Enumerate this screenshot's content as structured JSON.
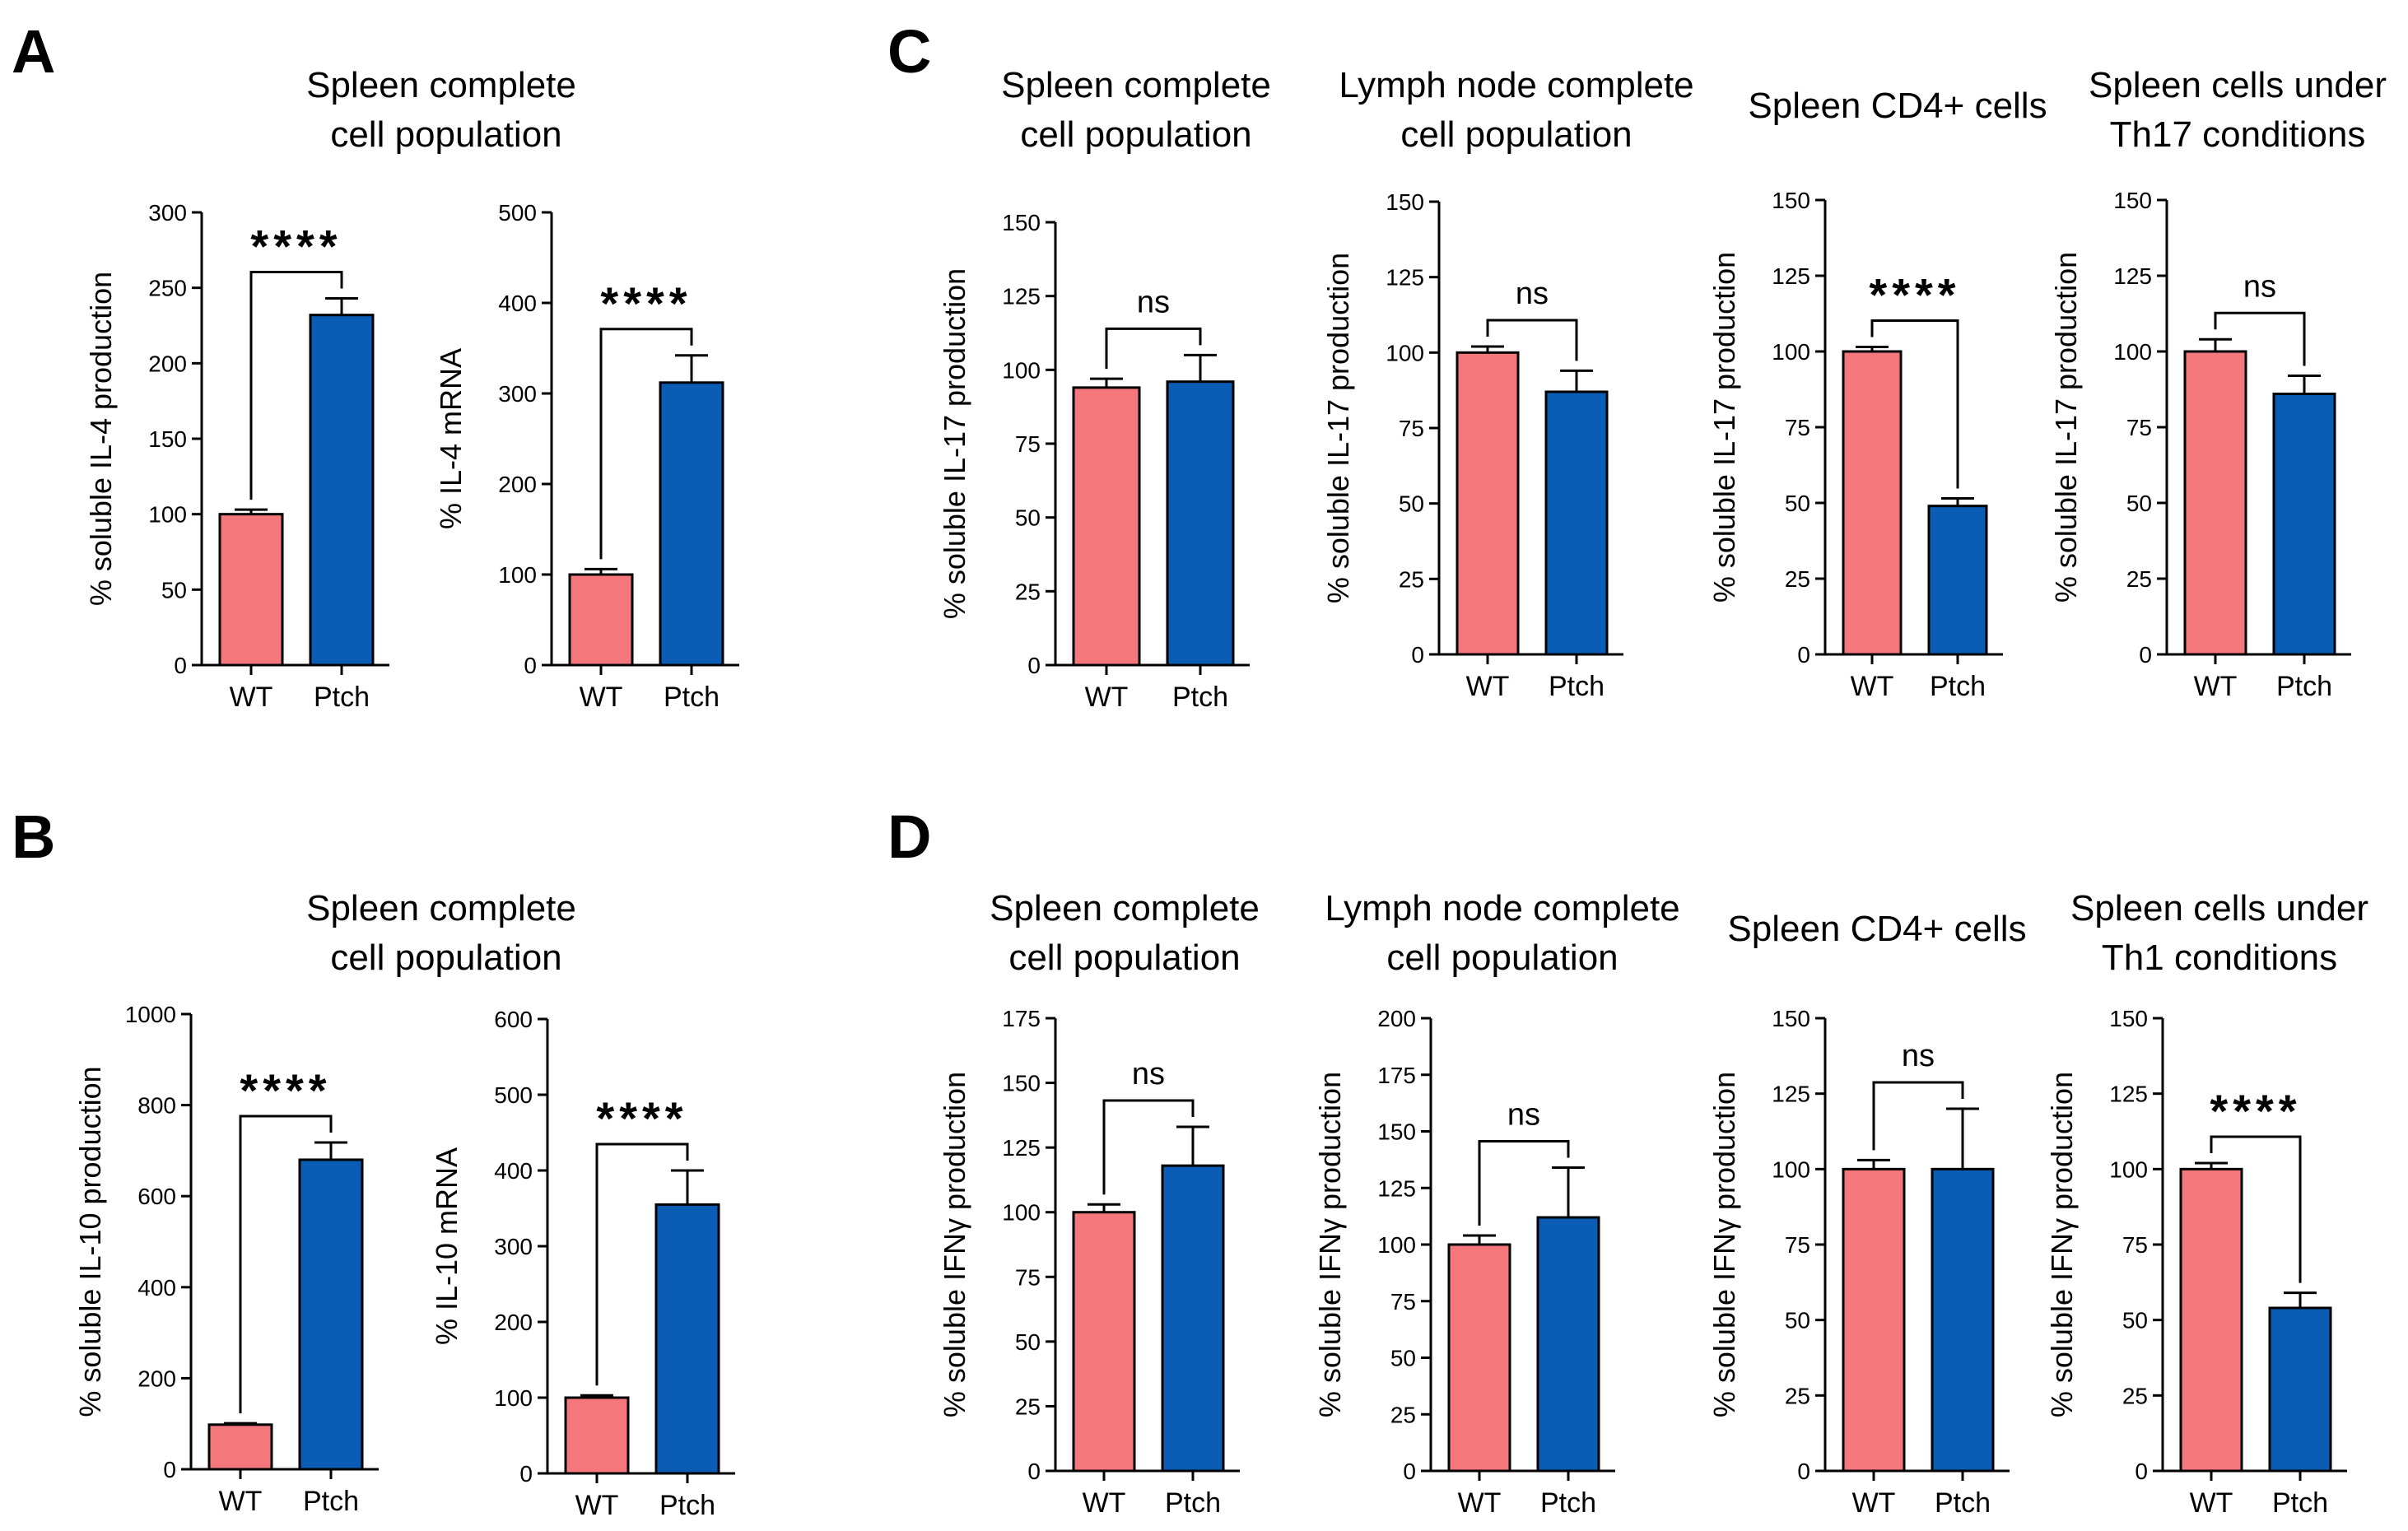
{
  "colors": {
    "wt": "#F4777B",
    "ptch": "#0A5CB5",
    "axis": "#000000"
  },
  "panels": [
    {
      "letter": "A",
      "title": [
        "Spleen complete",
        "cell population"
      ]
    },
    {
      "letter": "B",
      "title": [
        "Spleen complete",
        "cell population"
      ]
    },
    {
      "letter": "C"
    },
    {
      "letter": "D"
    }
  ],
  "chart_data": [
    {
      "id": "A1",
      "type": "bar",
      "panel": "A",
      "title": [],
      "ylabel": "% soluble IL-4 production",
      "ylim": [
        0,
        300
      ],
      "ticks": [
        0,
        50,
        100,
        150,
        200,
        250,
        300
      ],
      "categories": [
        "WT",
        "Ptch"
      ],
      "values": [
        100,
        232
      ],
      "errors": [
        3,
        11
      ],
      "significance": "****"
    },
    {
      "id": "A2",
      "type": "bar",
      "panel": "A",
      "title": [],
      "ylabel": "%  IL-4 mRNA",
      "ylim": [
        0,
        500
      ],
      "ticks": [
        0,
        100,
        200,
        300,
        400,
        500
      ],
      "categories": [
        "WT",
        "Ptch"
      ],
      "values": [
        100,
        312
      ],
      "errors": [
        6,
        30
      ],
      "significance": "****"
    },
    {
      "id": "B1",
      "type": "bar",
      "panel": "B",
      "title": [],
      "ylabel": "% soluble IL-10 production",
      "ylim": [
        0,
        1000
      ],
      "ticks": [
        0,
        200,
        400,
        600,
        800,
        1000
      ],
      "categories": [
        "WT",
        "Ptch"
      ],
      "values": [
        98,
        680
      ],
      "errors": [
        3,
        38
      ],
      "significance": "****"
    },
    {
      "id": "B2",
      "type": "bar",
      "panel": "B",
      "title": [],
      "ylabel": "%  IL-10 mRNA",
      "ylim": [
        0,
        600
      ],
      "ticks": [
        0,
        100,
        200,
        300,
        400,
        500,
        600
      ],
      "categories": [
        "WT",
        "Ptch"
      ],
      "values": [
        100,
        355
      ],
      "errors": [
        3,
        45
      ],
      "significance": "****"
    },
    {
      "id": "C1",
      "type": "bar",
      "panel": "C",
      "title": [
        "Spleen complete",
        "cell population"
      ],
      "ylabel": "% soluble IL-17 production",
      "ylim": [
        0,
        150
      ],
      "ticks": [
        0,
        25,
        50,
        75,
        100,
        125,
        150
      ],
      "categories": [
        "WT",
        "Ptch"
      ],
      "values": [
        94,
        96
      ],
      "errors": [
        3,
        9
      ],
      "significance": "ns"
    },
    {
      "id": "C2",
      "type": "bar",
      "panel": "C",
      "title": [
        "Lymph node complete",
        "cell population"
      ],
      "ylabel": "% soluble IL-17 production",
      "ylim": [
        0,
        150
      ],
      "ticks": [
        0,
        25,
        50,
        75,
        100,
        125,
        150
      ],
      "categories": [
        "WT",
        "Ptch"
      ],
      "values": [
        100,
        87
      ],
      "errors": [
        2,
        7
      ],
      "significance": "ns"
    },
    {
      "id": "C3",
      "type": "bar",
      "panel": "C",
      "title": [
        "Spleen CD4+ cells"
      ],
      "ylabel": "% soluble IL-17 production",
      "ylim": [
        0,
        150
      ],
      "ticks": [
        0,
        25,
        50,
        75,
        100,
        125,
        150
      ],
      "categories": [
        "WT",
        "Ptch"
      ],
      "values": [
        100,
        49
      ],
      "errors": [
        1.5,
        2.5
      ],
      "significance": "****"
    },
    {
      "id": "C4",
      "type": "bar",
      "panel": "C",
      "title": [
        "Spleen cells under",
        "Th17 conditions"
      ],
      "ylabel": "% soluble IL-17 production",
      "ylim": [
        0,
        150
      ],
      "ticks": [
        0,
        25,
        50,
        75,
        100,
        125,
        150
      ],
      "categories": [
        "WT",
        "Ptch"
      ],
      "values": [
        100,
        86
      ],
      "errors": [
        4,
        6
      ],
      "significance": "ns"
    },
    {
      "id": "D1",
      "type": "bar",
      "panel": "D",
      "title": [
        "Spleen complete",
        "cell population"
      ],
      "ylabel": "% soluble IFNγ production",
      "ylim": [
        0,
        175
      ],
      "ticks": [
        0,
        25,
        50,
        75,
        100,
        125,
        150,
        175
      ],
      "categories": [
        "WT",
        "Ptch"
      ],
      "values": [
        100,
        118
      ],
      "errors": [
        3,
        15
      ],
      "significance": "ns"
    },
    {
      "id": "D2",
      "type": "bar",
      "panel": "D",
      "title": [
        "Lymph node complete",
        "cell population"
      ],
      "ylabel": "% soluble IFNγ production",
      "ylim": [
        0,
        200
      ],
      "ticks": [
        0,
        25,
        50,
        75,
        100,
        125,
        150,
        175,
        200
      ],
      "categories": [
        "WT",
        "Ptch"
      ],
      "values": [
        100,
        112
      ],
      "errors": [
        4,
        22
      ],
      "significance": "ns"
    },
    {
      "id": "D3",
      "type": "bar",
      "panel": "D",
      "title": [
        "Spleen CD4+ cells"
      ],
      "ylabel": "% soluble IFNγ production",
      "ylim": [
        0,
        150
      ],
      "ticks": [
        0,
        25,
        50,
        75,
        100,
        125,
        150
      ],
      "categories": [
        "WT",
        "Ptch"
      ],
      "values": [
        100,
        100
      ],
      "errors": [
        3,
        20
      ],
      "significance": "ns"
    },
    {
      "id": "D4",
      "type": "bar",
      "panel": "D",
      "title": [
        "Spleen cells under",
        "Th1 conditions"
      ],
      "ylabel": "% soluble IFNγ production",
      "ylim": [
        0,
        150
      ],
      "ticks": [
        0,
        25,
        50,
        75,
        100,
        125,
        150
      ],
      "categories": [
        "WT",
        "Ptch"
      ],
      "values": [
        100,
        54
      ],
      "errors": [
        2,
        5
      ],
      "significance": "****"
    }
  ]
}
